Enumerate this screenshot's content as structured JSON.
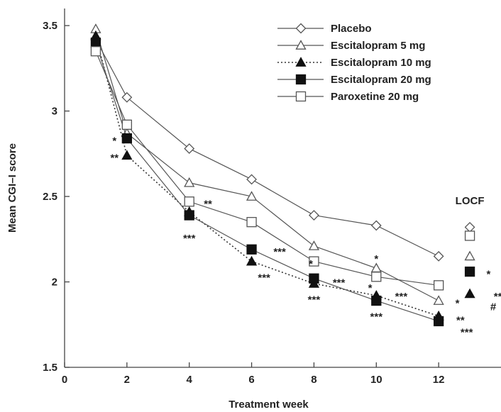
{
  "chart_data": {
    "type": "line",
    "title": "",
    "xlabel": "Treatment week",
    "ylabel": "Mean CGI–I score",
    "xlim": [
      0,
      14
    ],
    "ylim": [
      1.5,
      3.6
    ],
    "x_ticks": [
      0,
      2,
      4,
      6,
      8,
      10,
      12
    ],
    "y_ticks": [
      1.5,
      2,
      2.5,
      3,
      3.5
    ],
    "x_tick_labels": [
      "0",
      "2",
      "4",
      "6",
      "8",
      "10",
      "12"
    ],
    "y_tick_labels": [
      "1.5",
      "2",
      "2.5",
      "3",
      "3.5"
    ],
    "grid": false,
    "legend_position": "top-right",
    "series": [
      {
        "name": "Placebo",
        "marker": "diamond-open",
        "dash": "solid",
        "x": [
          1,
          2,
          4,
          6,
          8,
          10,
          12
        ],
        "y": [
          3.42,
          3.08,
          2.78,
          2.6,
          2.39,
          2.33,
          2.15
        ]
      },
      {
        "name": "Escitalopram 5 mg",
        "marker": "triangle-open",
        "dash": "solid",
        "x": [
          1,
          2,
          4,
          6,
          8,
          10,
          12
        ],
        "y": [
          3.48,
          2.87,
          2.58,
          2.5,
          2.21,
          2.08,
          1.89
        ]
      },
      {
        "name": "Escitalopram 10 mg",
        "marker": "triangle-filled",
        "dash": "dotted",
        "x": [
          1,
          2,
          4,
          6,
          8,
          10,
          12
        ],
        "y": [
          3.44,
          2.74,
          2.41,
          2.12,
          1.99,
          1.92,
          1.8
        ]
      },
      {
        "name": "Escitalopram 20 mg",
        "marker": "square-filled",
        "dash": "solid",
        "x": [
          1,
          2,
          4,
          6,
          8,
          10,
          12
        ],
        "y": [
          3.4,
          2.84,
          2.39,
          2.19,
          2.02,
          1.89,
          1.77
        ]
      },
      {
        "name": "Paroxetine 20 mg",
        "marker": "square-open",
        "dash": "solid",
        "x": [
          1,
          2,
          4,
          6,
          8,
          10,
          12
        ],
        "y": [
          3.35,
          2.92,
          2.47,
          2.35,
          2.12,
          2.03,
          1.98
        ]
      }
    ],
    "locf_label": "LOCF",
    "locf_points": [
      {
        "series": "Placebo",
        "marker": "diamond-open",
        "x": 13,
        "y": 2.32
      },
      {
        "series": "Paroxetine 20 mg",
        "marker": "square-open",
        "x": 13,
        "y": 2.27
      },
      {
        "series": "Escitalopram 5 mg",
        "marker": "triangle-open",
        "x": 13,
        "y": 2.15
      },
      {
        "series": "Escitalopram 20 mg",
        "marker": "square-filled",
        "x": 13,
        "y": 2.06
      },
      {
        "series": "Escitalopram 10 mg",
        "marker": "triangle-filled",
        "x": 13,
        "y": 1.93
      }
    ],
    "annotations": [
      {
        "text": "*",
        "x": 1.6,
        "y": 2.83
      },
      {
        "text": "**",
        "x": 1.6,
        "y": 2.73
      },
      {
        "text": "**",
        "x": 4.6,
        "y": 2.46
      },
      {
        "text": "***",
        "x": 4.0,
        "y": 2.26
      },
      {
        "text": "***",
        "x": 6.9,
        "y": 2.18
      },
      {
        "text": "***",
        "x": 6.4,
        "y": 2.03
      },
      {
        "text": "*",
        "x": 7.9,
        "y": 2.11
      },
      {
        "text": "***",
        "x": 8.8,
        "y": 2.0
      },
      {
        "text": "***",
        "x": 8.0,
        "y": 1.9
      },
      {
        "text": "*",
        "x": 10.0,
        "y": 2.14
      },
      {
        "text": "*",
        "x": 9.8,
        "y": 1.97
      },
      {
        "text": "***",
        "x": 10.8,
        "y": 1.92
      },
      {
        "text": "***",
        "x": 10.0,
        "y": 1.8
      },
      {
        "text": "*",
        "x": 12.6,
        "y": 1.88
      },
      {
        "text": "**",
        "x": 12.7,
        "y": 1.78
      },
      {
        "text": "***",
        "x": 12.9,
        "y": 1.71
      },
      {
        "text": "*",
        "x": 13.6,
        "y": 2.05
      },
      {
        "text": "**",
        "x": 13.9,
        "y": 1.92
      },
      {
        "text": "#",
        "x": 13.75,
        "y": 1.86
      }
    ]
  }
}
